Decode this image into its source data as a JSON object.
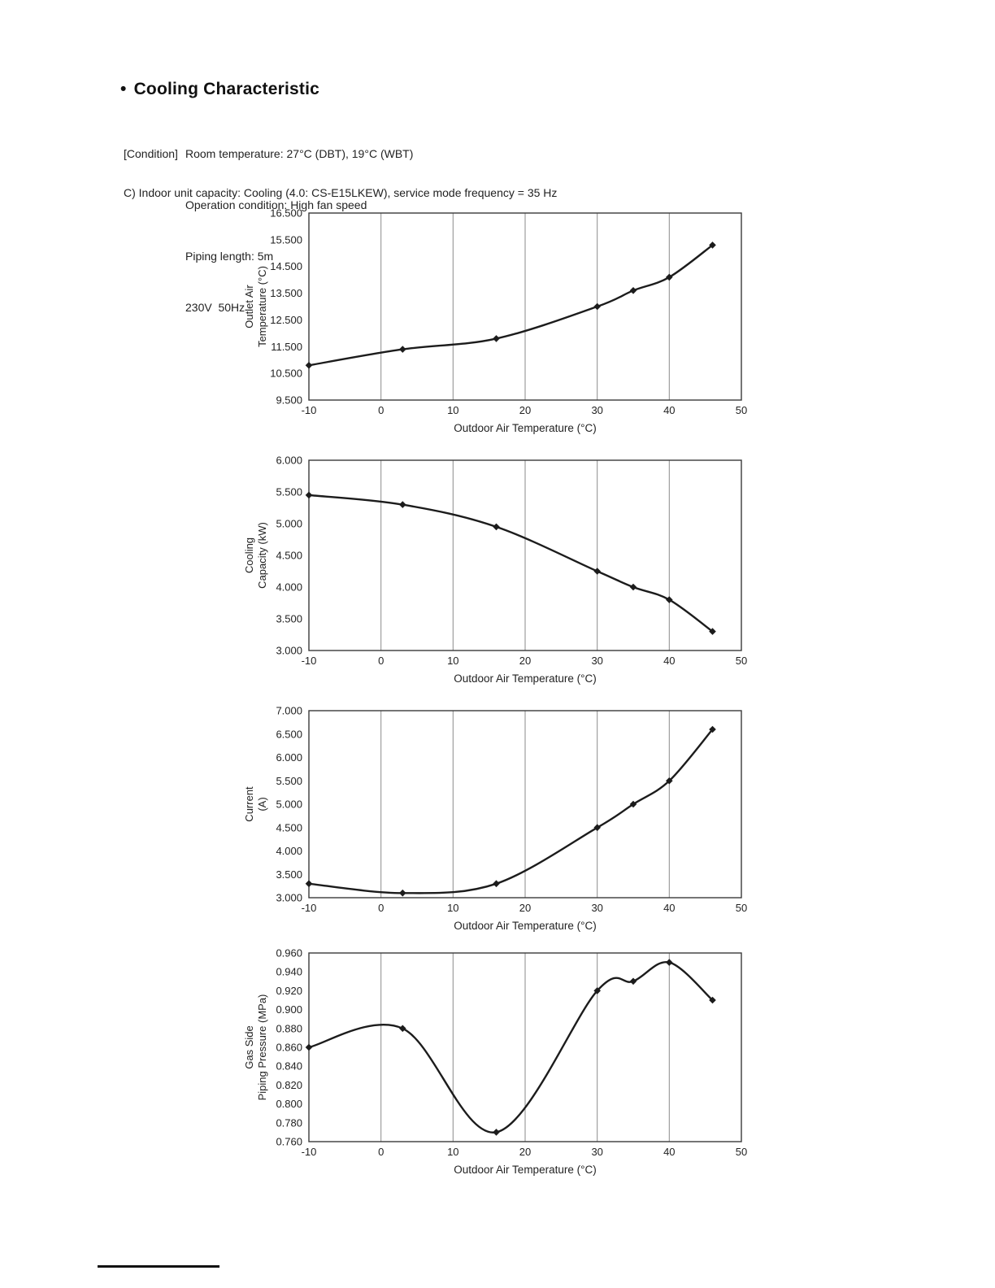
{
  "page": {
    "bullet": "•",
    "title": "Cooling Characteristic",
    "condition": {
      "prefix": "[Condition]",
      "lines": [
        "Room temperature: 27°C (DBT), 19°C (WBT)",
        "Operation condition: High fan speed",
        "Piping length: 5m",
        "230V  50Hz"
      ]
    },
    "section_heading": "C) Indoor unit capacity: Cooling (4.0: CS-E15LKEW), service mode frequency = 35 Hz"
  },
  "chart_data": [
    {
      "type": "line",
      "title": "",
      "xlabel": "Outdoor Air Temperature (°C)",
      "ylabel_lines": [
        "Outlet Air",
        "Temperature (°C)"
      ],
      "x": [
        -10,
        3,
        16,
        30,
        35,
        40,
        46
      ],
      "values": [
        10.8,
        11.4,
        11.8,
        13.0,
        13.6,
        14.1,
        15.3
      ],
      "xlim": [
        -10,
        50
      ],
      "ylim": [
        9.5,
        16.5
      ],
      "xticks": [
        -10,
        0,
        10,
        20,
        30,
        40,
        50
      ],
      "ytick_step": 1.0,
      "ytick_decimals": 3,
      "grid": "vertical",
      "legend": "none",
      "marker": "diamond",
      "line_color": "#1c1c1c"
    },
    {
      "type": "line",
      "title": "",
      "xlabel": "Outdoor Air Temperature (°C)",
      "ylabel_lines": [
        "Cooling",
        "Capacity (kW)"
      ],
      "x": [
        -10,
        3,
        16,
        30,
        35,
        40,
        46
      ],
      "values": [
        5.45,
        5.3,
        4.95,
        4.25,
        4.0,
        3.8,
        3.3
      ],
      "xlim": [
        -10,
        50
      ],
      "ylim": [
        3.0,
        6.0
      ],
      "xticks": [
        -10,
        0,
        10,
        20,
        30,
        40,
        50
      ],
      "ytick_step": 0.5,
      "ytick_decimals": 3,
      "grid": "vertical",
      "legend": "none",
      "marker": "diamond",
      "line_color": "#1c1c1c"
    },
    {
      "type": "line",
      "title": "",
      "xlabel": "Outdoor Air Temperature (°C)",
      "ylabel_lines": [
        "Current",
        "(A)"
      ],
      "x": [
        -10,
        3,
        16,
        30,
        35,
        40,
        46
      ],
      "values": [
        3.3,
        3.1,
        3.3,
        4.5,
        5.0,
        5.5,
        6.6
      ],
      "xlim": [
        -10,
        50
      ],
      "ylim": [
        3.0,
        7.0
      ],
      "xticks": [
        -10,
        0,
        10,
        20,
        30,
        40,
        50
      ],
      "ytick_step": 0.5,
      "ytick_decimals": 3,
      "grid": "vertical",
      "legend": "none",
      "marker": "diamond",
      "line_color": "#1c1c1c"
    },
    {
      "type": "line",
      "title": "",
      "xlabel": "Outdoor Air Temperature (°C)",
      "ylabel_lines": [
        "Gas Side",
        "Piping Pressure (MPa)"
      ],
      "x": [
        -10,
        3,
        16,
        30,
        35,
        40,
        46
      ],
      "values": [
        0.86,
        0.88,
        0.77,
        0.92,
        0.93,
        0.95,
        0.91
      ],
      "xlim": [
        -10,
        50
      ],
      "ylim": [
        0.76,
        0.96
      ],
      "xticks": [
        -10,
        0,
        10,
        20,
        30,
        40,
        50
      ],
      "ytick_step": 0.02,
      "ytick_decimals": 3,
      "grid": "vertical",
      "legend": "none",
      "marker": "diamond",
      "line_color": "#1c1c1c"
    }
  ]
}
